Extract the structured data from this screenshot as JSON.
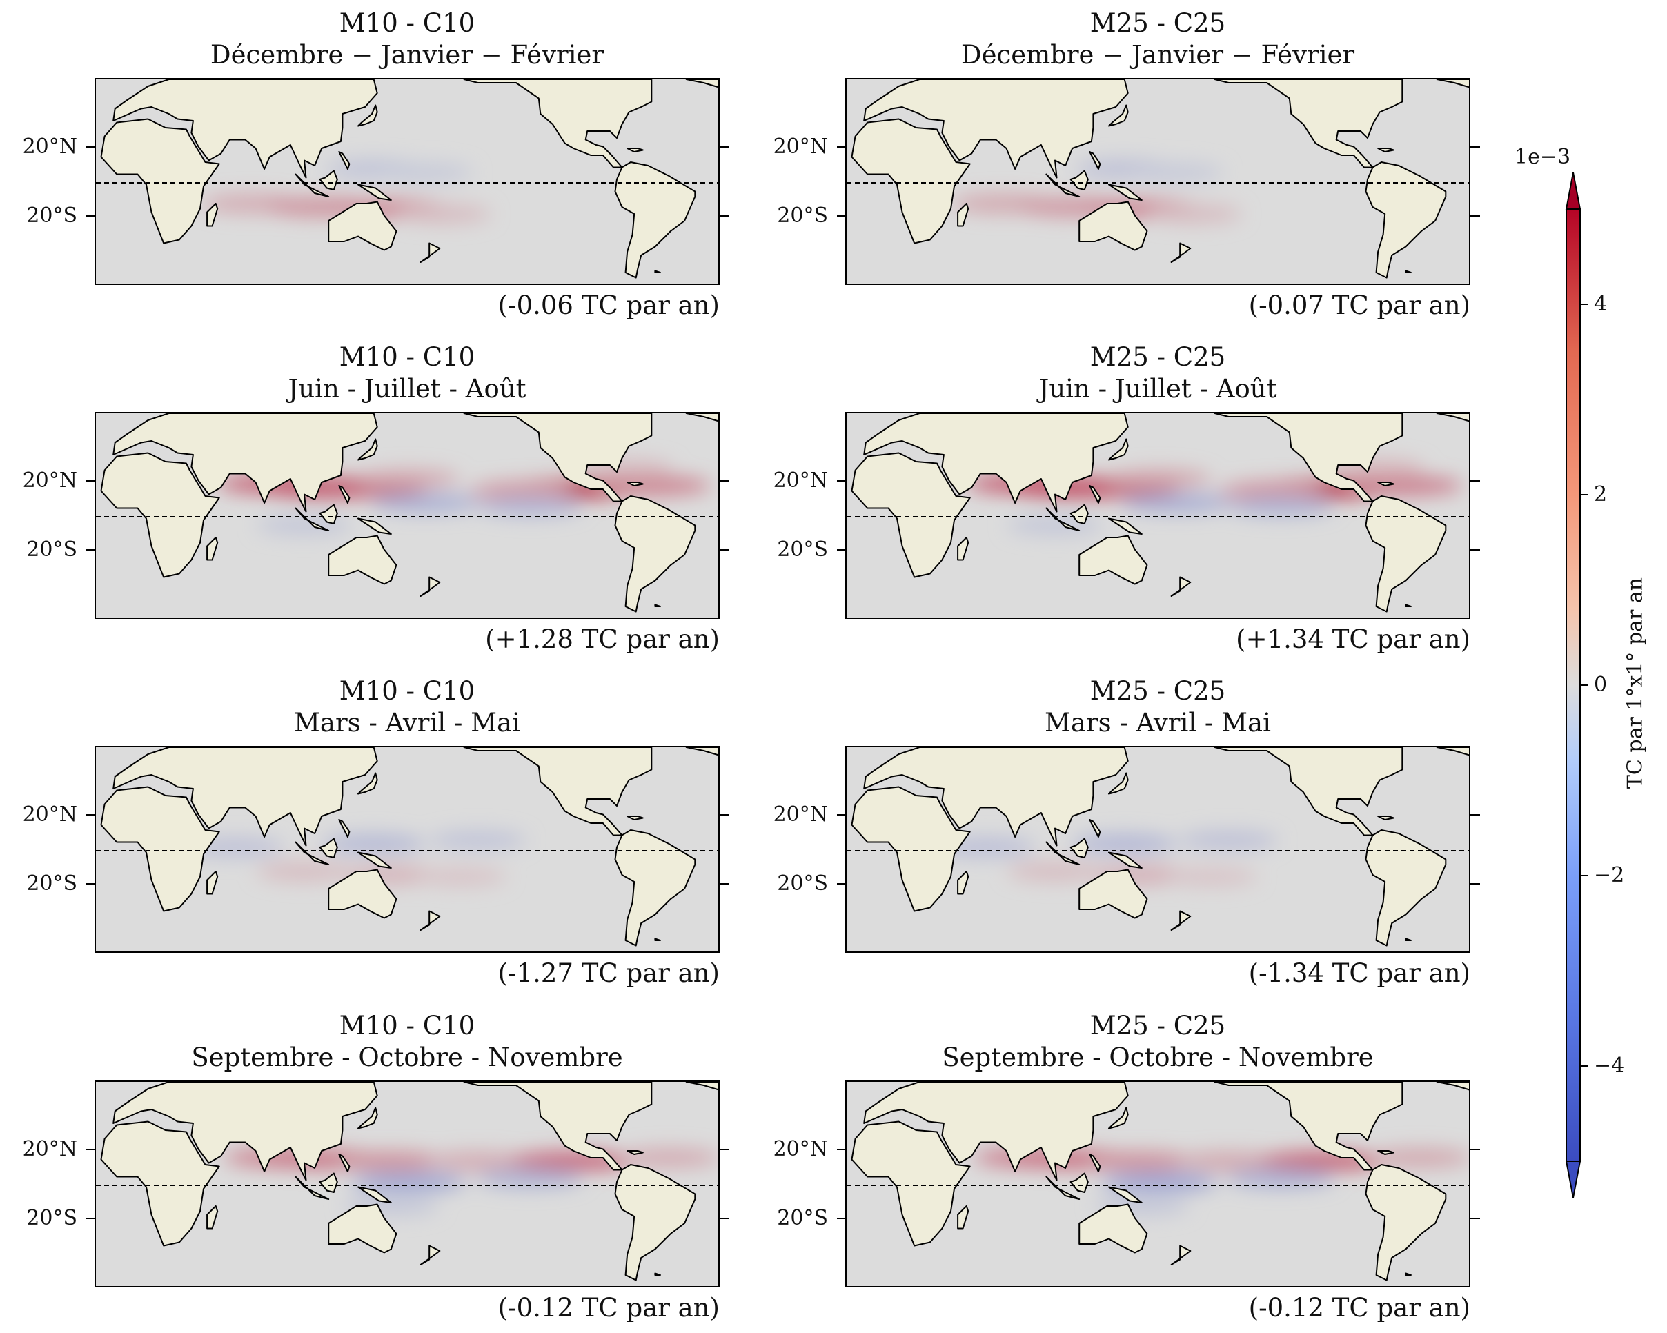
{
  "chart_data": {
    "type": "heatmap",
    "projection": "equirectangular",
    "lon_range": [
      -20,
      340
    ],
    "lat_range": [
      -60,
      60
    ],
    "yticks": [
      {
        "lat": 20,
        "label": "20°N"
      },
      {
        "lat": -20,
        "label": "20°S"
      }
    ],
    "equator_line": {
      "lat": 0,
      "style": "dashed"
    },
    "colormap": "coolwarm",
    "colorbar": {
      "label": "TC par 1°x1° par an",
      "scale_label": "1e−3",
      "range": [
        -5,
        5
      ],
      "extend": "both",
      "ticks": [
        {
          "value": 4,
          "label": "4"
        },
        {
          "value": 2,
          "label": "2"
        },
        {
          "value": 0,
          "label": "0"
        },
        {
          "value": -2,
          "label": "−2"
        },
        {
          "value": -4,
          "label": "−4"
        }
      ]
    },
    "panels": [
      {
        "model": "M10 - C10",
        "season": "Décembre − Janvier − Février",
        "annotation": "(-0.06 TC par an)",
        "total_change": -0.06,
        "anomalies": [
          {
            "lon": 70,
            "lat": -12,
            "value": 1.2
          },
          {
            "lon": 110,
            "lat": -14,
            "value": 1.8
          },
          {
            "lon": 150,
            "lat": -15,
            "value": 2.0
          },
          {
            "lon": 180,
            "lat": -18,
            "value": 0.8
          },
          {
            "lon": 140,
            "lat": 8,
            "value": -0.9
          },
          {
            "lon": 170,
            "lat": 6,
            "value": -0.7
          }
        ]
      },
      {
        "model": "M25 - C25",
        "season": "Décembre − Janvier − Février",
        "annotation": "(-0.07 TC par an)",
        "total_change": -0.07,
        "anomalies": [
          {
            "lon": 70,
            "lat": -12,
            "value": 1.3
          },
          {
            "lon": 110,
            "lat": -14,
            "value": 1.7
          },
          {
            "lon": 150,
            "lat": -15,
            "value": 2.1
          },
          {
            "lon": 180,
            "lat": -18,
            "value": 0.8
          },
          {
            "lon": 140,
            "lat": 8,
            "value": -1.0
          },
          {
            "lon": 170,
            "lat": 6,
            "value": -0.7
          }
        ]
      },
      {
        "model": "M10 - C10",
        "season": "Juin - Juillet - Août",
        "annotation": "(+1.28 TC par an)",
        "total_change": 1.28,
        "anomalies": [
          {
            "lon": 130,
            "lat": 17,
            "value": 3.6
          },
          {
            "lon": 112,
            "lat": 16,
            "value": 2.8
          },
          {
            "lon": 88,
            "lat": 19,
            "value": 3.0
          },
          {
            "lon": 160,
            "lat": 22,
            "value": 1.2
          },
          {
            "lon": 250,
            "lat": 16,
            "value": 4.6
          },
          {
            "lon": 225,
            "lat": 15,
            "value": 1.4
          },
          {
            "lon": 300,
            "lat": 18,
            "value": 2.2
          },
          {
            "lon": 285,
            "lat": 28,
            "value": 0.8
          },
          {
            "lon": 170,
            "lat": 8,
            "value": -1.6
          },
          {
            "lon": 230,
            "lat": 6,
            "value": -1.4
          },
          {
            "lon": 100,
            "lat": -5,
            "value": -0.8
          }
        ]
      },
      {
        "model": "M25 - C25",
        "season": "Juin - Juillet - Août",
        "annotation": "(+1.34 TC par an)",
        "total_change": 1.34,
        "anomalies": [
          {
            "lon": 130,
            "lat": 17,
            "value": 3.8
          },
          {
            "lon": 112,
            "lat": 16,
            "value": 3.0
          },
          {
            "lon": 88,
            "lat": 19,
            "value": 3.2
          },
          {
            "lon": 160,
            "lat": 22,
            "value": 1.3
          },
          {
            "lon": 250,
            "lat": 16,
            "value": 4.7
          },
          {
            "lon": 225,
            "lat": 15,
            "value": 1.5
          },
          {
            "lon": 300,
            "lat": 18,
            "value": 2.3
          },
          {
            "lon": 285,
            "lat": 28,
            "value": 0.9
          },
          {
            "lon": 170,
            "lat": 8,
            "value": -1.7
          },
          {
            "lon": 230,
            "lat": 6,
            "value": -1.5
          },
          {
            "lon": 100,
            "lat": -5,
            "value": -0.8
          }
        ]
      },
      {
        "model": "M10 - C10",
        "season": "Mars - Avril - Mai",
        "annotation": "(-1.27 TC par an)",
        "total_change": -1.27,
        "anomalies": [
          {
            "lon": 60,
            "lat": 2,
            "value": -1.0
          },
          {
            "lon": 140,
            "lat": 4,
            "value": -1.3
          },
          {
            "lon": 200,
            "lat": 6,
            "value": -0.9
          },
          {
            "lon": 100,
            "lat": -12,
            "value": 0.8
          },
          {
            "lon": 150,
            "lat": -14,
            "value": 1.0
          },
          {
            "lon": 190,
            "lat": -15,
            "value": 0.6
          }
        ]
      },
      {
        "model": "M25 - C25",
        "season": "Mars - Avril - Mai",
        "annotation": "(-1.34 TC par an)",
        "total_change": -1.34,
        "anomalies": [
          {
            "lon": 60,
            "lat": 2,
            "value": -1.1
          },
          {
            "lon": 140,
            "lat": 4,
            "value": -1.4
          },
          {
            "lon": 200,
            "lat": 6,
            "value": -1.0
          },
          {
            "lon": 100,
            "lat": -12,
            "value": 0.8
          },
          {
            "lon": 150,
            "lat": -14,
            "value": 1.1
          },
          {
            "lon": 190,
            "lat": -15,
            "value": 0.6
          }
        ]
      },
      {
        "model": "M10 - C10",
        "season": "Septembre - Octobre - Novembre",
        "annotation": "(-0.12 TC par an)",
        "total_change": -0.12,
        "anomalies": [
          {
            "lon": 88,
            "lat": 16,
            "value": 2.2
          },
          {
            "lon": 112,
            "lat": 15,
            "value": 2.4
          },
          {
            "lon": 150,
            "lat": 14,
            "value": 1.8
          },
          {
            "lon": 200,
            "lat": 14,
            "value": 1.2
          },
          {
            "lon": 255,
            "lat": 14,
            "value": 2.8
          },
          {
            "lon": 310,
            "lat": 16,
            "value": 1.2
          },
          {
            "lon": 160,
            "lat": 2,
            "value": -2.0
          },
          {
            "lon": 230,
            "lat": 4,
            "value": -1.5
          },
          {
            "lon": 150,
            "lat": -12,
            "value": -0.8
          }
        ]
      },
      {
        "model": "M25 - C25",
        "season": "Septembre - Octobre - Novembre",
        "annotation": "(-0.12 TC par an)",
        "total_change": -0.12,
        "anomalies": [
          {
            "lon": 88,
            "lat": 16,
            "value": 2.3
          },
          {
            "lon": 112,
            "lat": 15,
            "value": 2.5
          },
          {
            "lon": 150,
            "lat": 14,
            "value": 1.8
          },
          {
            "lon": 200,
            "lat": 14,
            "value": 1.3
          },
          {
            "lon": 255,
            "lat": 14,
            "value": 2.9
          },
          {
            "lon": 310,
            "lat": 16,
            "value": 1.3
          },
          {
            "lon": 160,
            "lat": 2,
            "value": -2.1
          },
          {
            "lon": 230,
            "lat": 4,
            "value": -1.6
          },
          {
            "lon": 150,
            "lat": -12,
            "value": -0.8
          }
        ]
      }
    ]
  }
}
